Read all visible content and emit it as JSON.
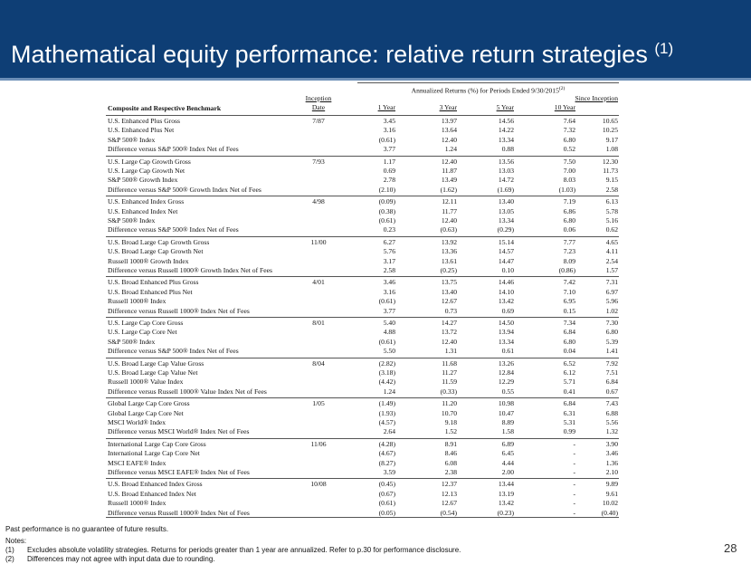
{
  "header": {
    "title": "Mathematical equity performance: relative return strategies",
    "note": "(1)"
  },
  "table": {
    "period_header": "Annualized Returns (%) for Periods Ended 9/30/2015",
    "period_note": "(2)",
    "columns": [
      "Composite and Respective Benchmark",
      "Inception Date",
      "1 Year",
      "3 Year",
      "5 Year",
      "10 Year",
      "Since Inception"
    ],
    "groups": [
      {
        "inception": "7/87",
        "rows": [
          [
            "U.S. Enhanced Plus Gross",
            "3.45",
            "13.97",
            "14.56",
            "7.64",
            "10.65"
          ],
          [
            "U.S. Enhanced Plus Net",
            "3.16",
            "13.64",
            "14.22",
            "7.32",
            "10.25"
          ],
          [
            "S&P 500® Index",
            "(0.61)",
            "12.40",
            "13.34",
            "6.80",
            "9.17"
          ],
          [
            "Difference versus S&P 500® Index Net of Fees",
            "3.77",
            "1.24",
            "0.88",
            "0.52",
            "1.08"
          ]
        ]
      },
      {
        "inception": "7/93",
        "rows": [
          [
            "U.S. Large Cap Growth Gross",
            "1.17",
            "12.40",
            "13.56",
            "7.50",
            "12.30"
          ],
          [
            "U.S. Large Cap Growth Net",
            "0.69",
            "11.87",
            "13.03",
            "7.00",
            "11.73"
          ],
          [
            "S&P 500® Growth Index",
            "2.78",
            "13.49",
            "14.72",
            "8.03",
            "9.15"
          ],
          [
            "Difference versus S&P 500® Growth Index Net of Fees",
            "(2.10)",
            "(1.62)",
            "(1.69)",
            "(1.03)",
            "2.58"
          ]
        ]
      },
      {
        "inception": "4/98",
        "rows": [
          [
            "U.S. Enhanced Index Gross",
            "(0.09)",
            "12.11",
            "13.40",
            "7.19",
            "6.13"
          ],
          [
            "U.S. Enhanced Index Net",
            "(0.38)",
            "11.77",
            "13.05",
            "6.86",
            "5.78"
          ],
          [
            "S&P 500® Index",
            "(0.61)",
            "12.40",
            "13.34",
            "6.80",
            "5.16"
          ],
          [
            "Difference versus S&P 500® Index Net of Fees",
            "0.23",
            "(0.63)",
            "(0.29)",
            "0.06",
            "0.62"
          ]
        ]
      },
      {
        "inception": "11/00",
        "rows": [
          [
            "U.S. Broad Large Cap Growth Gross",
            "6.27",
            "13.92",
            "15.14",
            "7.77",
            "4.65"
          ],
          [
            "U.S. Broad Large Cap Growth Net",
            "5.76",
            "13.36",
            "14.57",
            "7.23",
            "4.11"
          ],
          [
            "Russell 1000® Growth Index",
            "3.17",
            "13.61",
            "14.47",
            "8.09",
            "2.54"
          ],
          [
            "Difference versus Russell 1000® Growth Index Net of Fees",
            "2.58",
            "(0.25)",
            "0.10",
            "(0.86)",
            "1.57"
          ]
        ]
      },
      {
        "inception": "4/01",
        "rows": [
          [
            "U.S. Broad Enhanced Plus Gross",
            "3.46",
            "13.75",
            "14.46",
            "7.42",
            "7.31"
          ],
          [
            "U.S. Broad Enhanced Plus Net",
            "3.16",
            "13.40",
            "14.10",
            "7.10",
            "6.97"
          ],
          [
            "Russell 1000® Index",
            "(0.61)",
            "12.67",
            "13.42",
            "6.95",
            "5.96"
          ],
          [
            "Difference versus Russell 1000® Index Net of Fees",
            "3.77",
            "0.73",
            "0.69",
            "0.15",
            "1.02"
          ]
        ]
      },
      {
        "inception": "8/01",
        "rows": [
          [
            "U.S. Large Cap Core Gross",
            "5.40",
            "14.27",
            "14.50",
            "7.34",
            "7.30"
          ],
          [
            "U.S. Large Cap Core Net",
            "4.88",
            "13.72",
            "13.94",
            "6.84",
            "6.80"
          ],
          [
            "S&P 500® Index",
            "(0.61)",
            "12.40",
            "13.34",
            "6.80",
            "5.39"
          ],
          [
            "Difference versus S&P 500® Index Net of Fees",
            "5.50",
            "1.31",
            "0.61",
            "0.04",
            "1.41"
          ]
        ]
      },
      {
        "inception": "8/04",
        "rows": [
          [
            "U.S. Broad Large Cap Value Gross",
            "(2.82)",
            "11.68",
            "13.26",
            "6.52",
            "7.92"
          ],
          [
            "U.S. Broad Large Cap Value Net",
            "(3.18)",
            "11.27",
            "12.84",
            "6.12",
            "7.51"
          ],
          [
            "Russell 1000® Value Index",
            "(4.42)",
            "11.59",
            "12.29",
            "5.71",
            "6.84"
          ],
          [
            "Difference versus Russell 1000® Value Index Net of Fees",
            "1.24",
            "(0.33)",
            "0.55",
            "0.41",
            "0.67"
          ]
        ]
      },
      {
        "inception": "1/05",
        "rows": [
          [
            "Global Large Cap Core Gross",
            "(1.49)",
            "11.20",
            "10.98",
            "6.84",
            "7.43"
          ],
          [
            "Global Large Cap Core Net",
            "(1.93)",
            "10.70",
            "10.47",
            "6.31",
            "6.88"
          ],
          [
            "MSCI World® Index",
            "(4.57)",
            "9.18",
            "8.89",
            "5.31",
            "5.56"
          ],
          [
            "Difference versus MSCI World® Index Net of Fees",
            "2.64",
            "1.52",
            "1.58",
            "0.99",
            "1.32"
          ]
        ]
      },
      {
        "inception": "11/06",
        "rows": [
          [
            "International Large Cap Core Gross",
            "(4.28)",
            "8.91",
            "6.89",
            "-",
            "3.90"
          ],
          [
            "International Large Cap Core Net",
            "(4.67)",
            "8.46",
            "6.45",
            "-",
            "3.46"
          ],
          [
            "MSCI EAFE® Index",
            "(8.27)",
            "6.08",
            "4.44",
            "-",
            "1.36"
          ],
          [
            "Difference versus MSCI EAFE® Index Net of Fees",
            "3.59",
            "2.38",
            "2.00",
            "-",
            "2.10"
          ]
        ]
      },
      {
        "inception": "10/08",
        "rows": [
          [
            "U.S. Broad Enhanced Index Gross",
            "(0.45)",
            "12.37",
            "13.44",
            "-",
            "9.89"
          ],
          [
            "U.S. Broad Enhanced Index Net",
            "(0.67)",
            "12.13",
            "13.19",
            "-",
            "9.61"
          ],
          [
            "Russell 1000® Index",
            "(0.61)",
            "12.67",
            "13.42",
            "-",
            "10.02"
          ],
          [
            "Difference versus Russell 1000® Index Net of Fees",
            "(0.05)",
            "(0.54)",
            "(0.23)",
            "-",
            "(0.40)"
          ]
        ]
      }
    ]
  },
  "footer": {
    "disclaimer": "Past performance is no guarantee of future results.",
    "notes_heading": "Notes:",
    "notes": [
      {
        "marker": "(1)",
        "text": "Excludes absolute volatility strategies. Returns for periods greater than 1 year are annualized. Refer to p.30 for performance disclosure."
      },
      {
        "marker": "(2)",
        "text": "Differences may not agree with input data due to rounding."
      }
    ],
    "page_number": "28"
  }
}
